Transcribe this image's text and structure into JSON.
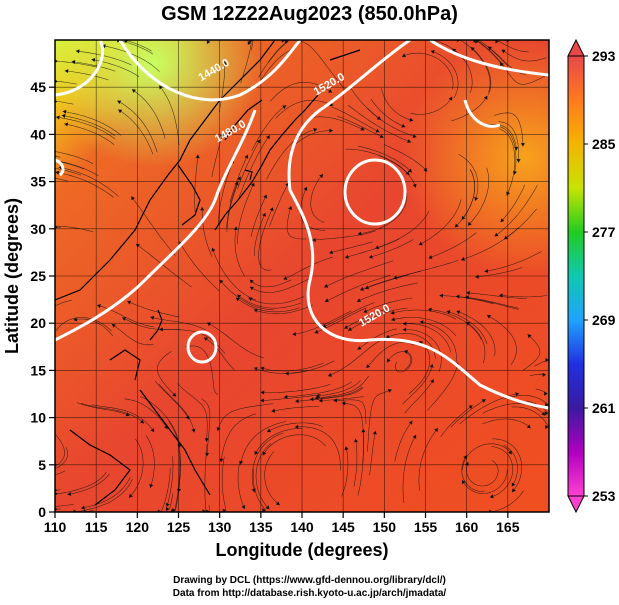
{
  "title": "GSM 12Z22Aug2023 (850.0hPa)",
  "map": {
    "xlabel": "Longitude (degrees)",
    "ylabel": "Latitude  (degrees)",
    "x_ticks": [
      "110",
      "115",
      "120",
      "125",
      "130",
      "135",
      "140",
      "145",
      "150",
      "155",
      "160",
      "165"
    ],
    "y_ticks": [
      "0",
      "5",
      "10",
      "15",
      "20",
      "25",
      "30",
      "35",
      "40",
      "45"
    ],
    "lon_range": [
      110,
      170
    ],
    "lat_range": [
      0,
      50
    ],
    "contour_labels": [
      {
        "text": "1440.0",
        "lon": 129.5,
        "lat": 46.5
      },
      {
        "text": "1520.0",
        "lon": 143.5,
        "lat": 45.0
      },
      {
        "text": "1480.0",
        "lon": 131.5,
        "lat": 40.0
      },
      {
        "text": "1520.0",
        "lon": 149.0,
        "lat": 20.5
      }
    ]
  },
  "colorbar": {
    "labels": [
      "293",
      "285",
      "277",
      "269",
      "261",
      "253"
    ],
    "stops": [
      {
        "color": "#e8484a"
      },
      {
        "color": "#ff7a1f"
      },
      {
        "color": "#f4b400"
      },
      {
        "color": "#c8e300"
      },
      {
        "color": "#22cc22"
      },
      {
        "color": "#10c8b0"
      },
      {
        "color": "#1fa3ff"
      },
      {
        "color": "#2030e0"
      },
      {
        "color": "#3a1aa0"
      },
      {
        "color": "#b000c0"
      },
      {
        "color": "#ff40d0"
      }
    ]
  },
  "credits": {
    "line1": "Drawing by DCL (https://www.gfd-dennou.org/library/dcl/)",
    "line2": "Data from http://database.rish.kyoto-u.ac.jp/arch/jmadata/"
  }
}
